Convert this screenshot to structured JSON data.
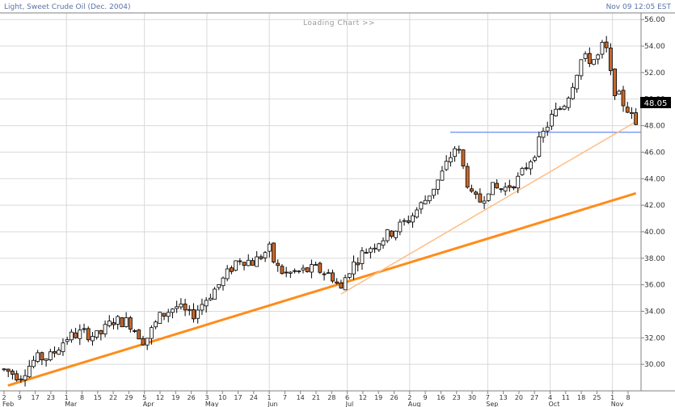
{
  "header": {
    "title": "Light, Sweet Crude Oil (Dec. 2004)",
    "datetime": "Nov 09 12:05 EST"
  },
  "loading_text": "Loading Chart  >>",
  "colors": {
    "up_fill": "#ffffff",
    "down_fill": "#c8682a",
    "candle_outline": "#000000",
    "trendline_main": "#ff8c1a",
    "trendline_light": "#ffbd86",
    "resistance": "#7f9cf5",
    "price_label_bg": "#000000",
    "header_text": "#5a73a8",
    "grid": "#d9d9d9",
    "border": "#808080"
  },
  "chart_data": {
    "type": "candlestick",
    "ylim": [
      28,
      56.5
    ],
    "yticks": [
      30,
      32,
      34,
      36,
      38,
      40,
      42,
      44,
      46,
      48,
      50,
      52,
      54,
      56
    ],
    "ytick_labels": [
      "30.00",
      "32.00",
      "34.00",
      "36.00",
      "38.00",
      "40.00",
      "42.00",
      "44.00",
      "46.00",
      "48.00",
      "50.00",
      "52.00",
      "54.00",
      "56.00"
    ],
    "x_tick_labels": [
      "2",
      "9",
      "17",
      "23",
      "1",
      "8",
      "15",
      "22",
      "29",
      "5",
      "12",
      "19",
      "26",
      "3",
      "10",
      "17",
      "24",
      "1",
      "7",
      "14",
      "21",
      "28",
      "6",
      "12",
      "19",
      "26",
      "2",
      "9",
      "16",
      "23",
      "30",
      "7",
      "13",
      "20",
      "27",
      "4",
      "11",
      "18",
      "25",
      "1",
      "8"
    ],
    "month_labels": [
      "Feb",
      "Mar",
      "Apr",
      "May",
      "Jun",
      "Jul",
      "Aug",
      "Sep",
      "Oct",
      "Nov"
    ],
    "month_start_tick_index": [
      0,
      4,
      9,
      13,
      17,
      22,
      26,
      31,
      35,
      39
    ],
    "x_grid_tick_index": [
      4,
      9,
      13,
      17,
      22,
      26,
      31,
      35,
      39
    ],
    "current_price_label": "48.05",
    "resistance_level": 47.5,
    "trendlines": [
      {
        "style": "main",
        "points": [
          {
            "tick": 0.25,
            "price": 28.4
          },
          {
            "tick": 40.5,
            "price": 42.9
          }
        ]
      },
      {
        "style": "light",
        "points": [
          {
            "tick": 21.6,
            "price": 35.3
          },
          {
            "tick": 40.5,
            "price": 48.3
          }
        ]
      }
    ],
    "anchors": [
      {
        "tick": 0,
        "price": 29.6
      },
      {
        "tick": 1,
        "price": 29.1
      },
      {
        "tick": 2,
        "price": 30.4
      },
      {
        "tick": 3,
        "price": 30.6
      },
      {
        "tick": 4,
        "price": 32.0
      },
      {
        "tick": 5,
        "price": 32.4
      },
      {
        "tick": 6,
        "price": 32.1
      },
      {
        "tick": 7,
        "price": 33.3
      },
      {
        "tick": 8,
        "price": 33.2
      },
      {
        "tick": 9,
        "price": 31.7
      },
      {
        "tick": 10,
        "price": 33.6
      },
      {
        "tick": 11,
        "price": 34.4
      },
      {
        "tick": 12,
        "price": 33.6
      },
      {
        "tick": 13,
        "price": 35.0
      },
      {
        "tick": 14,
        "price": 36.3
      },
      {
        "tick": 15,
        "price": 38.0
      },
      {
        "tick": 16,
        "price": 37.7
      },
      {
        "tick": 17,
        "price": 38.7
      },
      {
        "tick": 17.4,
        "price": 37.4
      },
      {
        "tick": 18,
        "price": 36.8
      },
      {
        "tick": 19,
        "price": 37.0
      },
      {
        "tick": 20,
        "price": 37.2
      },
      {
        "tick": 21,
        "price": 36.7
      },
      {
        "tick": 21.6,
        "price": 35.6
      },
      {
        "tick": 22,
        "price": 37.0
      },
      {
        "tick": 23,
        "price": 38.4
      },
      {
        "tick": 24,
        "price": 39.3
      },
      {
        "tick": 25,
        "price": 40.1
      },
      {
        "tick": 26,
        "price": 41.0
      },
      {
        "tick": 27,
        "price": 42.4
      },
      {
        "tick": 28,
        "price": 44.2
      },
      {
        "tick": 29,
        "price": 46.6
      },
      {
        "tick": 30,
        "price": 42.5
      },
      {
        "tick": 30.6,
        "price": 42.3
      },
      {
        "tick": 31,
        "price": 43.3
      },
      {
        "tick": 32,
        "price": 43.2
      },
      {
        "tick": 33,
        "price": 44.0
      },
      {
        "tick": 34,
        "price": 46.0
      },
      {
        "tick": 35,
        "price": 48.5
      },
      {
        "tick": 36,
        "price": 49.8
      },
      {
        "tick": 37,
        "price": 53.0
      },
      {
        "tick": 38,
        "price": 53.0
      },
      {
        "tick": 38.5,
        "price": 54.4
      },
      {
        "tick": 39,
        "price": 51.0
      },
      {
        "tick": 39.5,
        "price": 50.0
      },
      {
        "tick": 40,
        "price": 49.2
      },
      {
        "tick": 40.5,
        "price": 48.05
      }
    ]
  }
}
